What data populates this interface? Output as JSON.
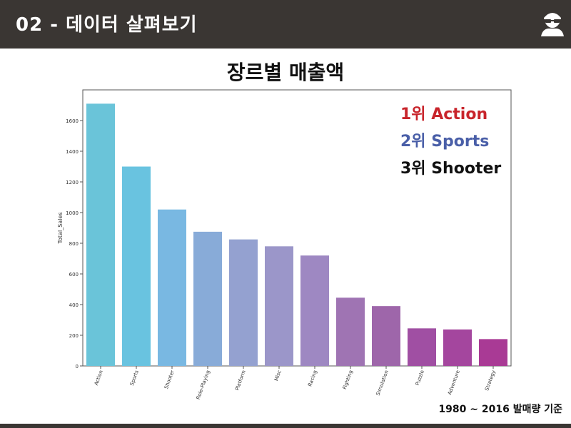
{
  "header": {
    "title": "02 - 데이터 살펴보기",
    "avatar_icon": "bearded-man-avatar-icon"
  },
  "page_title": "장르별 매출액",
  "ranks": [
    {
      "label": "1위 Action",
      "color": "#c8242b"
    },
    {
      "label": "2위 Sports",
      "color": "#4a5fa8"
    },
    {
      "label": "3위 Shooter",
      "color": "#111111"
    }
  ],
  "footnote": "1980 ~ 2016 발매량 기준",
  "chart_data": {
    "type": "bar",
    "title": "",
    "xlabel": "",
    "ylabel": "Total_Sales",
    "ylim": [
      0,
      1800
    ],
    "yticks": [
      0,
      200,
      400,
      600,
      800,
      1000,
      1200,
      1400,
      1600
    ],
    "grid": false,
    "categories": [
      "Action",
      "Sports",
      "Shooter",
      "Role-Playing",
      "Platform",
      "Misc",
      "Racing",
      "Fighting",
      "Simulation",
      "Puzzle",
      "Adventure",
      "Strategy"
    ],
    "values": [
      1710,
      1300,
      1020,
      875,
      825,
      780,
      720,
      445,
      390,
      245,
      238,
      175
    ],
    "colors": [
      "#6ac4d9",
      "#69c3e0",
      "#79b8e2",
      "#88abd8",
      "#94a1d0",
      "#9b96c9",
      "#9e88c2",
      "#9f74b3",
      "#9e66aa",
      "#a04fa3",
      "#a4469e",
      "#a93a95"
    ]
  }
}
